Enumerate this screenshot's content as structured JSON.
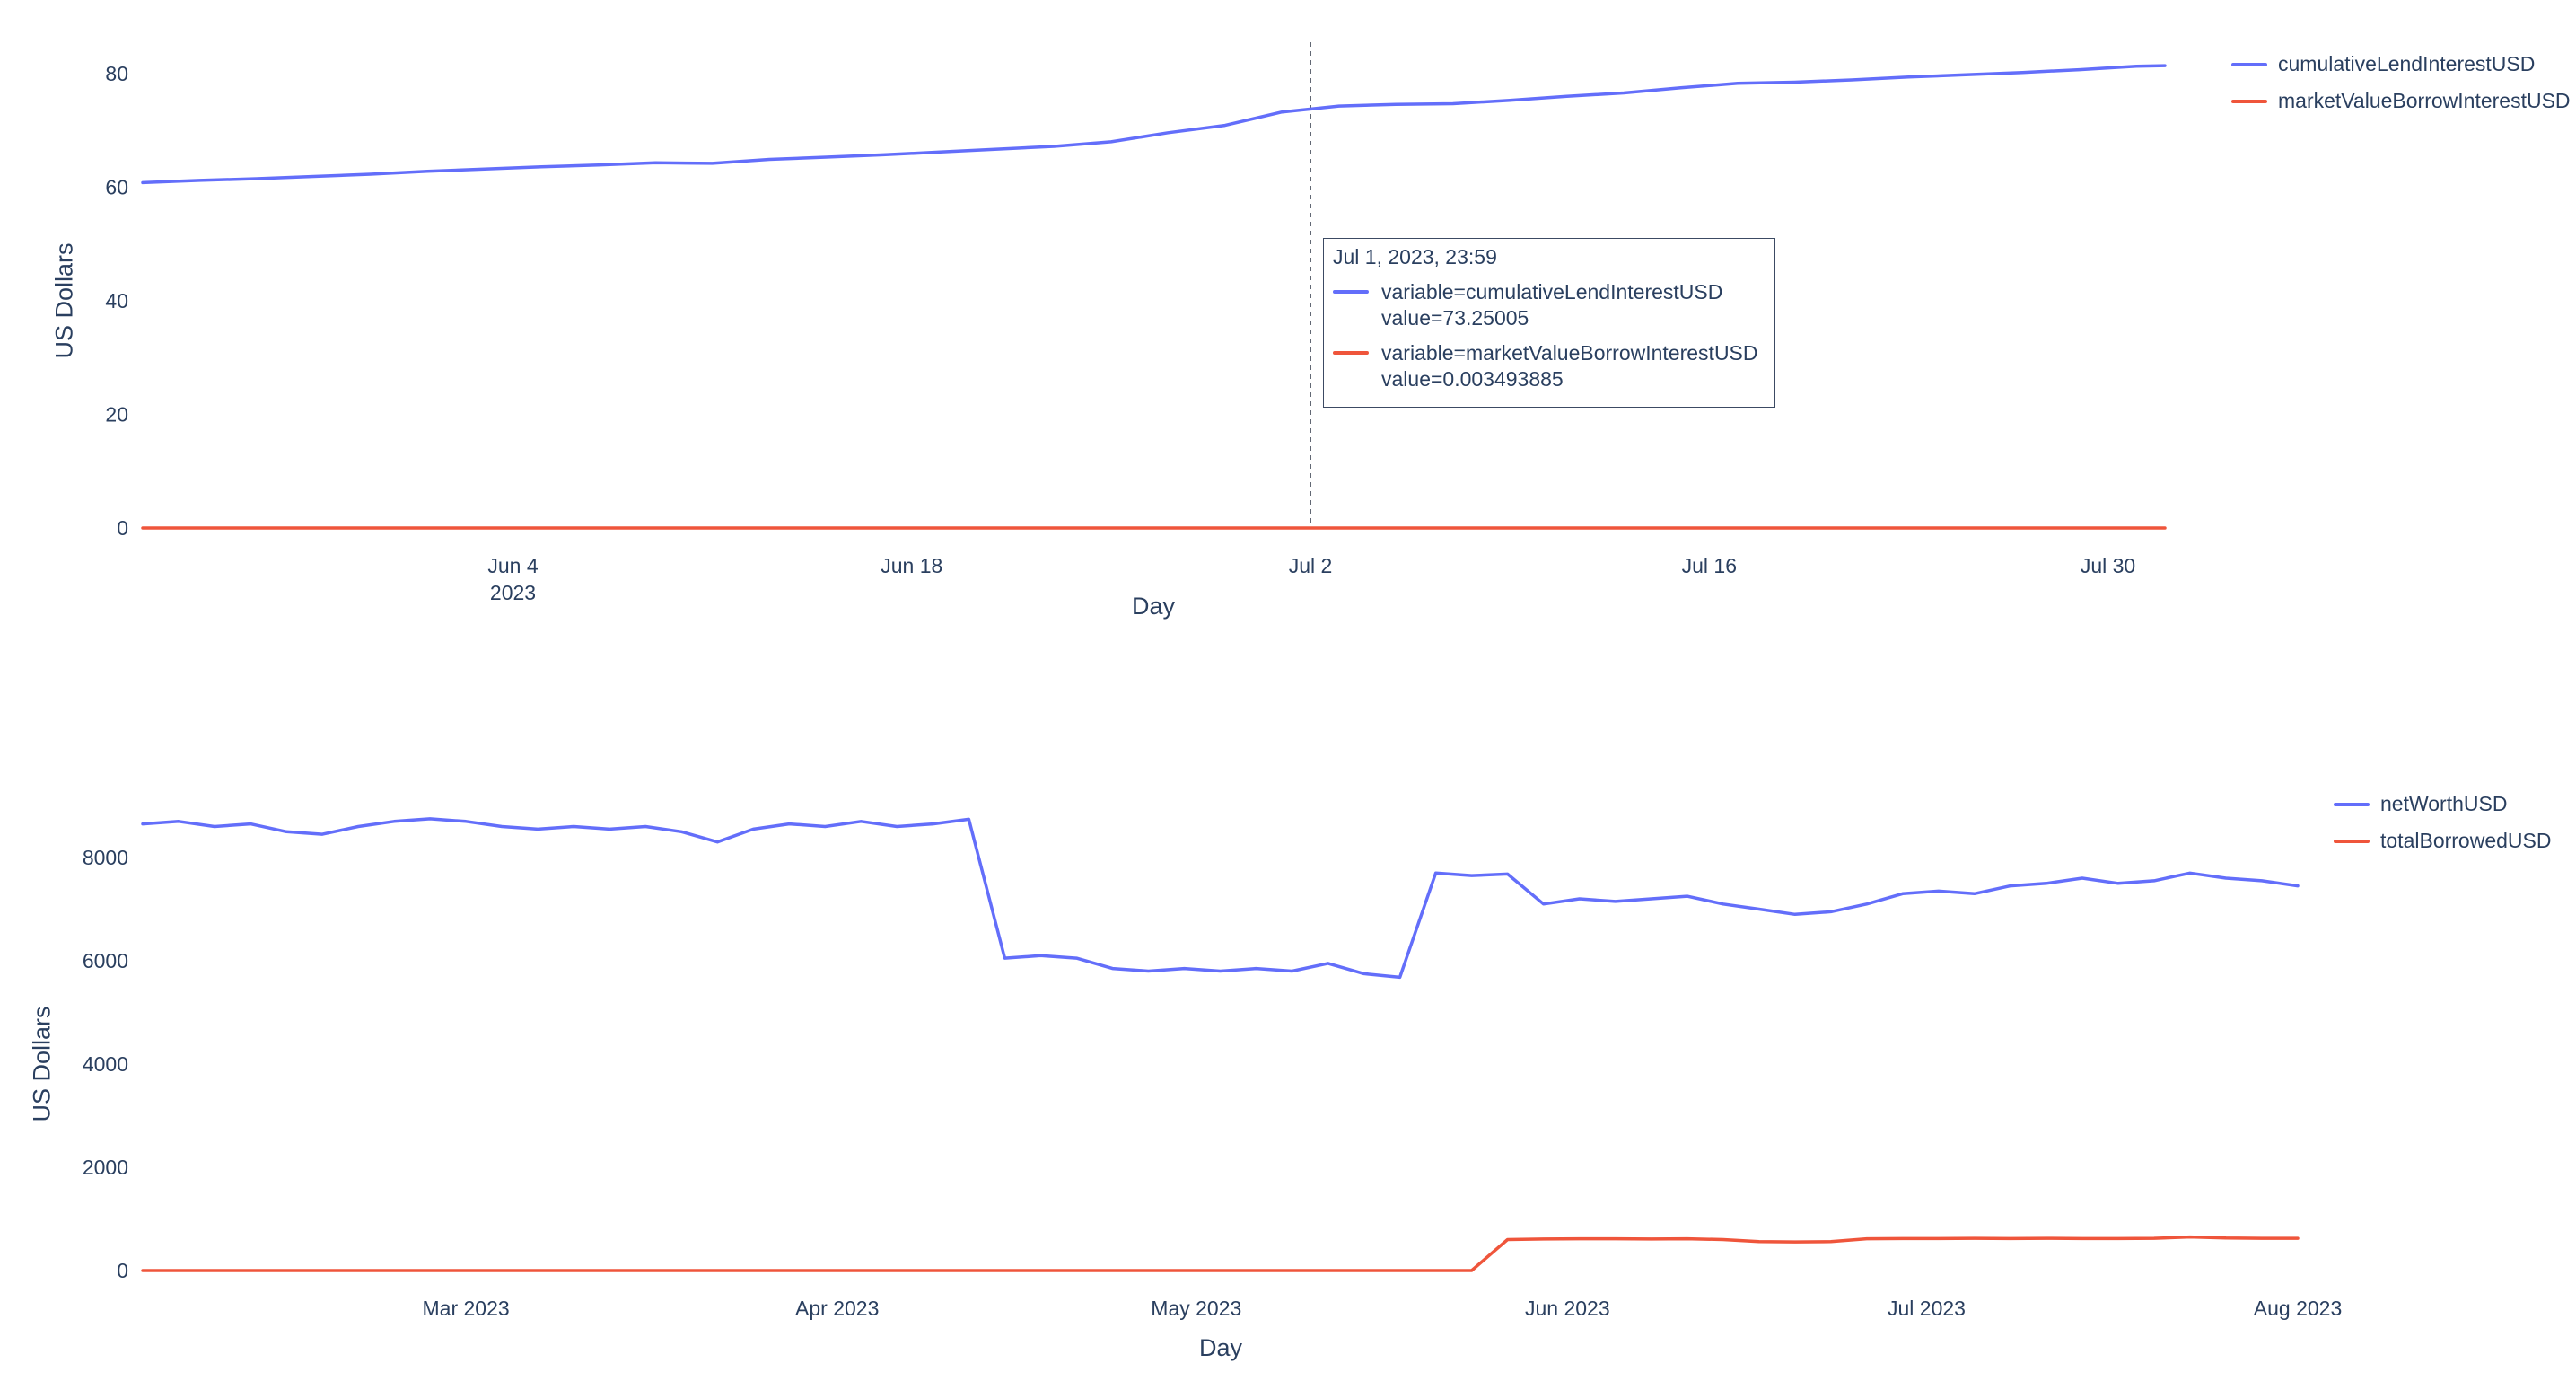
{
  "text_color": "#2a3f5f",
  "tooltip": {
    "date": "Jul 1, 2023, 23:59",
    "entries": [
      {
        "color": "#636efa",
        "variable": "variable=cumulativeLendInterestUSD",
        "value": "value=73.25005"
      },
      {
        "color": "#EF553B",
        "variable": "variable=marketValueBorrowInterestUSD",
        "value": "value=0.003493885"
      }
    ]
  },
  "chart_data": [
    {
      "type": "line",
      "title": "",
      "xlabel": "Day",
      "ylabel": "US Dollars",
      "grid": false,
      "legend_position": "top-right",
      "x_domain": [
        "2023-05-22",
        "2023-08-01"
      ],
      "y_domain": [
        0,
        80
      ],
      "y_ticks": [
        0,
        20,
        40,
        60,
        80
      ],
      "x_ticks": [
        {
          "date": "2023-06-04",
          "label": "Jun 4\n2023"
        },
        {
          "date": "2023-06-18",
          "label": "Jun 18"
        },
        {
          "date": "2023-07-02",
          "label": "Jul 2"
        },
        {
          "date": "2023-07-16",
          "label": "Jul 16"
        },
        {
          "date": "2023-07-30",
          "label": "Jul 30"
        }
      ],
      "spike_date": "2023-07-02",
      "x": [
        "2023-05-22",
        "2023-05-24",
        "2023-05-26",
        "2023-05-28",
        "2023-05-30",
        "2023-06-01",
        "2023-06-03",
        "2023-06-05",
        "2023-06-07",
        "2023-06-09",
        "2023-06-11",
        "2023-06-13",
        "2023-06-15",
        "2023-06-17",
        "2023-06-19",
        "2023-06-21",
        "2023-06-23",
        "2023-06-25",
        "2023-06-27",
        "2023-06-29",
        "2023-07-01",
        "2023-07-03",
        "2023-07-05",
        "2023-07-07",
        "2023-07-09",
        "2023-07-11",
        "2023-07-13",
        "2023-07-15",
        "2023-07-17",
        "2023-07-19",
        "2023-07-21",
        "2023-07-23",
        "2023-07-25",
        "2023-07-27",
        "2023-07-29",
        "2023-07-31",
        "2023-08-01"
      ],
      "series": [
        {
          "name": "cumulativeLendInterestUSD",
          "color": "#636efa",
          "values": [
            60.8,
            61.2,
            61.5,
            61.9,
            62.3,
            62.8,
            63.2,
            63.6,
            63.9,
            64.3,
            64.2,
            64.9,
            65.3,
            65.7,
            66.2,
            66.7,
            67.2,
            68.0,
            69.6,
            70.9,
            73.25,
            74.3,
            74.6,
            74.7,
            75.3,
            76.0,
            76.6,
            77.5,
            78.3,
            78.5,
            78.9,
            79.4,
            79.8,
            80.2,
            80.7,
            81.3,
            81.4
          ]
        },
        {
          "name": "marketValueBorrowInterestUSD",
          "color": "#EF553B",
          "values": [
            0.0001,
            0.0003,
            0.0004,
            0.0006,
            0.0008,
            0.0009,
            0.0011,
            0.0013,
            0.0014,
            0.0016,
            0.0018,
            0.0019,
            0.0021,
            0.0023,
            0.0024,
            0.0026,
            0.0028,
            0.0029,
            0.0031,
            0.0033,
            0.0035,
            0.0036,
            0.0038,
            0.004,
            0.0041,
            0.0043,
            0.0045,
            0.0046,
            0.0048,
            0.005,
            0.0051,
            0.0053,
            0.0055,
            0.0056,
            0.0058,
            0.006,
            0.0061
          ]
        }
      ]
    },
    {
      "type": "line",
      "title": "",
      "xlabel": "Day",
      "ylabel": "US Dollars",
      "grid": false,
      "legend_position": "top-right",
      "x_domain": [
        "2023-02-02",
        "2023-08-01"
      ],
      "y_domain": [
        0,
        8000
      ],
      "y_ticks": [
        0,
        2000,
        4000,
        6000,
        8000
      ],
      "x_ticks": [
        {
          "date": "2023-03-01",
          "label": "Mar 2023"
        },
        {
          "date": "2023-04-01",
          "label": "Apr 2023"
        },
        {
          "date": "2023-05-01",
          "label": "May 2023"
        },
        {
          "date": "2023-06-01",
          "label": "Jun 2023"
        },
        {
          "date": "2023-07-01",
          "label": "Jul 2023"
        },
        {
          "date": "2023-08-01",
          "label": "Aug 2023"
        }
      ],
      "x": [
        "2023-02-02",
        "2023-02-05",
        "2023-02-08",
        "2023-02-11",
        "2023-02-14",
        "2023-02-17",
        "2023-02-20",
        "2023-02-23",
        "2023-02-26",
        "2023-03-01",
        "2023-03-04",
        "2023-03-07",
        "2023-03-10",
        "2023-03-13",
        "2023-03-16",
        "2023-03-19",
        "2023-03-22",
        "2023-03-25",
        "2023-03-28",
        "2023-03-31",
        "2023-04-03",
        "2023-04-06",
        "2023-04-09",
        "2023-04-12",
        "2023-04-15",
        "2023-04-18",
        "2023-04-21",
        "2023-04-24",
        "2023-04-27",
        "2023-04-30",
        "2023-05-03",
        "2023-05-06",
        "2023-05-09",
        "2023-05-12",
        "2023-05-15",
        "2023-05-18",
        "2023-05-21",
        "2023-05-24",
        "2023-05-27",
        "2023-05-30",
        "2023-06-02",
        "2023-06-05",
        "2023-06-08",
        "2023-06-11",
        "2023-06-14",
        "2023-06-17",
        "2023-06-20",
        "2023-06-23",
        "2023-06-26",
        "2023-06-29",
        "2023-07-02",
        "2023-07-05",
        "2023-07-08",
        "2023-07-11",
        "2023-07-14",
        "2023-07-17",
        "2023-07-20",
        "2023-07-23",
        "2023-07-26",
        "2023-07-29",
        "2023-08-01"
      ],
      "series": [
        {
          "name": "netWorthUSD",
          "color": "#636efa",
          "values": [
            8650,
            8700,
            8600,
            8650,
            8500,
            8450,
            8600,
            8700,
            8750,
            8700,
            8600,
            8550,
            8600,
            8550,
            8600,
            8500,
            8300,
            8550,
            8650,
            8600,
            8700,
            8600,
            8650,
            8740,
            6050,
            6100,
            6050,
            5850,
            5800,
            5850,
            5800,
            5850,
            5800,
            5950,
            5750,
            5680,
            7700,
            7650,
            7680,
            7100,
            7200,
            7150,
            7200,
            7250,
            7100,
            7000,
            6900,
            6950,
            7100,
            7300,
            7350,
            7300,
            7450,
            7500,
            7600,
            7500,
            7550,
            7700,
            7600,
            7550,
            7450
          ]
        },
        {
          "name": "totalBorrowedUSD",
          "color": "#EF553B",
          "values": [
            0,
            0,
            0,
            0,
            0,
            0,
            0,
            0,
            0,
            0,
            0,
            0,
            0,
            0,
            0,
            0,
            0,
            0,
            0,
            0,
            0,
            0,
            0,
            0,
            0,
            0,
            0,
            0,
            0,
            0,
            0,
            0,
            0,
            0,
            0,
            0,
            0,
            0,
            600,
            610,
            615,
            615,
            610,
            615,
            600,
            560,
            555,
            560,
            615,
            620,
            620,
            625,
            620,
            625,
            620,
            620,
            625,
            650,
            630,
            625,
            625
          ]
        }
      ]
    }
  ]
}
